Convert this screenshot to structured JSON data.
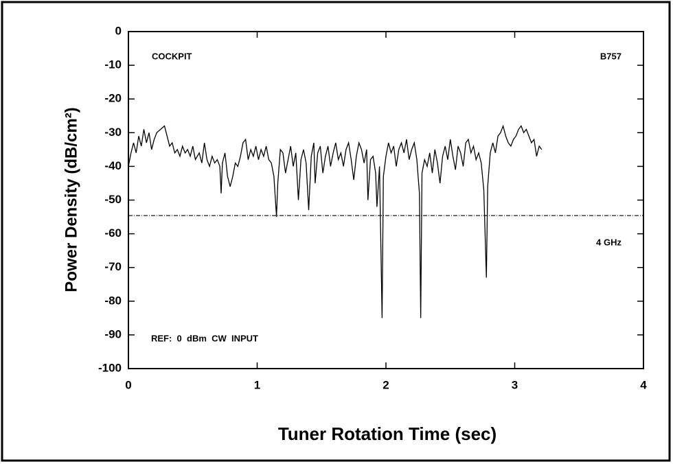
{
  "chart_data": {
    "type": "line",
    "ylabel": "Power Density (dB/cm²)",
    "xlabel": "Tuner Rotation Time (sec)",
    "annotations": [
      "COCKPIT",
      "B757",
      "4 GHz",
      "REF:  0  dBm  CW  INPUT"
    ],
    "reference_line": -54.6,
    "xlim": [
      0,
      4
    ],
    "xticks": [
      0,
      1,
      2,
      3,
      4
    ],
    "ylim": [
      -100,
      0
    ],
    "yticks": [
      0,
      -10,
      -20,
      -30,
      -40,
      -50,
      -60,
      -70,
      -80,
      -90,
      -100
    ],
    "color": "#000000",
    "x": [
      0,
      0.02,
      0.04,
      0.06,
      0.08,
      0.1,
      0.12,
      0.14,
      0.16,
      0.18,
      0.2,
      0.22,
      0.25,
      0.28,
      0.3,
      0.32,
      0.34,
      0.36,
      0.38,
      0.4,
      0.42,
      0.44,
      0.46,
      0.48,
      0.5,
      0.52,
      0.55,
      0.57,
      0.59,
      0.61,
      0.63,
      0.65,
      0.67,
      0.69,
      0.71,
      0.72,
      0.73,
      0.75,
      0.77,
      0.79,
      0.81,
      0.83,
      0.85,
      0.87,
      0.89,
      0.91,
      0.93,
      0.95,
      0.97,
      0.99,
      1.01,
      1.03,
      1.05,
      1.07,
      1.09,
      1.11,
      1.13,
      1.15,
      1.16,
      1.18,
      1.2,
      1.22,
      1.24,
      1.26,
      1.28,
      1.3,
      1.32,
      1.34,
      1.36,
      1.38,
      1.4,
      1.42,
      1.44,
      1.45,
      1.47,
      1.49,
      1.51,
      1.53,
      1.55,
      1.57,
      1.59,
      1.61,
      1.63,
      1.65,
      1.67,
      1.69,
      1.71,
      1.73,
      1.75,
      1.77,
      1.79,
      1.81,
      1.83,
      1.85,
      1.86,
      1.88,
      1.9,
      1.92,
      1.93,
      1.95,
      1.97,
      1.98,
      2.0,
      2.02,
      2.04,
      2.06,
      2.08,
      2.1,
      2.12,
      2.14,
      2.16,
      2.18,
      2.2,
      2.22,
      2.24,
      2.26,
      2.27,
      2.28,
      2.3,
      2.32,
      2.34,
      2.36,
      2.38,
      2.4,
      2.42,
      2.44,
      2.46,
      2.48,
      2.5,
      2.52,
      2.54,
      2.56,
      2.58,
      2.6,
      2.62,
      2.64,
      2.66,
      2.68,
      2.7,
      2.72,
      2.74,
      2.76,
      2.78,
      2.79,
      2.81,
      2.83,
      2.85,
      2.87,
      2.89,
      2.91,
      2.93,
      2.95,
      2.97,
      2.99,
      3.01,
      3.03,
      3.05,
      3.07,
      3.09,
      3.11,
      3.13,
      3.15,
      3.17,
      3.19,
      3.21
    ],
    "values": [
      -40,
      -36,
      -33,
      -36,
      -31,
      -34,
      -29,
      -33,
      -30,
      -35,
      -32,
      -30,
      -29,
      -28,
      -31,
      -34,
      -33,
      -36,
      -35,
      -37,
      -34,
      -36,
      -35,
      -37,
      -34,
      -38,
      -36,
      -39,
      -33,
      -38,
      -40,
      -37,
      -39,
      -38,
      -40,
      -48,
      -39,
      -36,
      -43,
      -46,
      -43,
      -39,
      -40,
      -37,
      -33,
      -32,
      -38,
      -35,
      -37,
      -34,
      -38,
      -35,
      -37,
      -34,
      -38,
      -39,
      -43,
      -55,
      -45,
      -35,
      -36,
      -42,
      -38,
      -34,
      -40,
      -36,
      -50,
      -38,
      -35,
      -39,
      -53,
      -37,
      -33,
      -45,
      -36,
      -34,
      -42,
      -37,
      -34,
      -40,
      -36,
      -33,
      -38,
      -36,
      -40,
      -35,
      -33,
      -38,
      -44,
      -37,
      -33,
      -35,
      -39,
      -35,
      -50,
      -38,
      -37,
      -42,
      -52,
      -40,
      -85,
      -43,
      -37,
      -33,
      -36,
      -34,
      -40,
      -35,
      -33,
      -36,
      -32,
      -38,
      -35,
      -33,
      -38,
      -48,
      -85,
      -42,
      -38,
      -40,
      -36,
      -42,
      -35,
      -39,
      -45,
      -37,
      -34,
      -38,
      -32,
      -37,
      -41,
      -34,
      -36,
      -40,
      -33,
      -32,
      -36,
      -34,
      -38,
      -36,
      -39,
      -47,
      -73,
      -46,
      -36,
      -33,
      -36,
      -31,
      -30,
      -28,
      -31,
      -33,
      -34,
      -32,
      -31,
      -29,
      -28,
      -30,
      -29,
      -31,
      -33,
      -32,
      -37,
      -34,
      -35
    ]
  }
}
